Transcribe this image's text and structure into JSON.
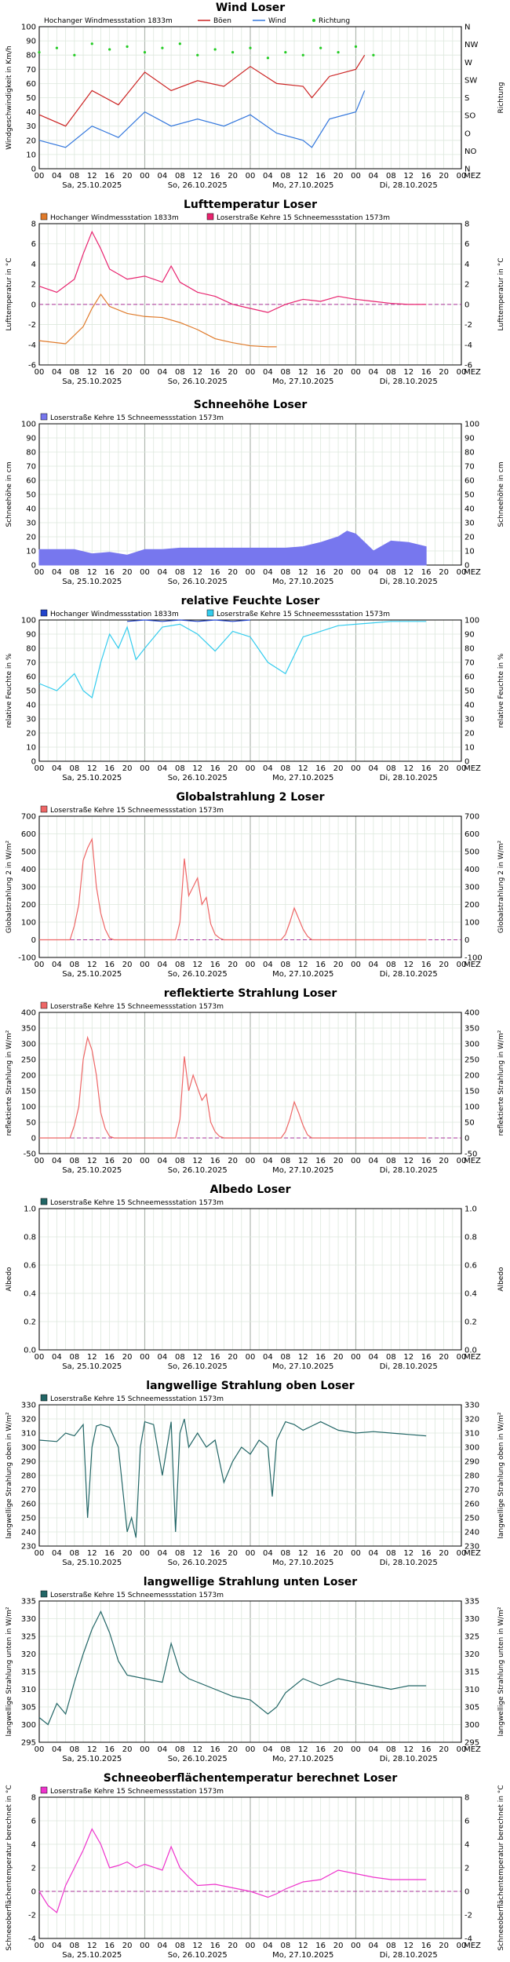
{
  "time_axis": {
    "hours": [
      "00",
      "04",
      "08",
      "12",
      "16",
      "20",
      "00",
      "04",
      "08",
      "12",
      "16",
      "20",
      "00",
      "04",
      "08",
      "12",
      "16",
      "20",
      "00",
      "04",
      "08",
      "12",
      "16",
      "20",
      "00"
    ],
    "tz": "MEZ",
    "dates": [
      "Sa, 25.10.2025",
      "So, 26.10.2025",
      "Mo, 27.10.2025",
      "Di, 28.10.2025"
    ]
  },
  "chart_data": [
    {
      "type": "line",
      "title": "Wind    Loser",
      "ylabel": "Windgeschwindigkeit in Km/h",
      "ylabel_right": "Richtung",
      "ylim": [
        0,
        100
      ],
      "yticks": [
        "0",
        "10",
        "20",
        "30",
        "40",
        "50",
        "60",
        "70",
        "80",
        "90",
        "100"
      ],
      "yticks_right": [
        "N",
        "NO",
        "O",
        "SO",
        "S",
        "SW",
        "W",
        "NW",
        "N"
      ],
      "legend": [
        {
          "label": "Hochanger Windmessstation   1833m",
          "color": "",
          "kind": "station"
        },
        {
          "label": "Böen",
          "color": "#cc2222",
          "kind": "line"
        },
        {
          "label": "Wind",
          "color": "#3377dd",
          "kind": "line"
        },
        {
          "label": "Richtung",
          "color": "#22cc22",
          "kind": "dot"
        }
      ],
      "series": [
        {
          "name": "Böen",
          "color": "#cc2222",
          "x": [
            0,
            6,
            12,
            18,
            24,
            30,
            36,
            42,
            48,
            54,
            60,
            62,
            66,
            72,
            74
          ],
          "y": [
            38,
            30,
            55,
            45,
            68,
            55,
            62,
            58,
            72,
            60,
            58,
            50,
            65,
            70,
            80
          ]
        },
        {
          "name": "Wind",
          "color": "#3377dd",
          "x": [
            0,
            6,
            12,
            18,
            24,
            30,
            36,
            42,
            48,
            54,
            60,
            62,
            66,
            72,
            74
          ],
          "y": [
            20,
            15,
            30,
            22,
            40,
            30,
            35,
            30,
            38,
            25,
            20,
            15,
            35,
            40,
            55
          ]
        },
        {
          "name": "Richtung",
          "color": "#22cc22",
          "kind": "dots",
          "x": [
            0,
            4,
            8,
            12,
            16,
            20,
            24,
            28,
            32,
            36,
            40,
            44,
            48,
            52,
            56,
            60,
            64,
            68,
            72,
            76
          ],
          "y": [
            82,
            85,
            80,
            88,
            84,
            86,
            82,
            85,
            88,
            80,
            84,
            82,
            85,
            78,
            82,
            80,
            85,
            82,
            86,
            80
          ]
        }
      ]
    },
    {
      "type": "line",
      "title": "Lufttemperatur    Loser",
      "ylabel": "Lufttemperatur in °C",
      "ylim": [
        -6,
        8
      ],
      "yticks": [
        "-6",
        "-4",
        "-2",
        "0",
        "2",
        "4",
        "6",
        "8"
      ],
      "zero_line": 0,
      "legend": [
        {
          "label": "Hochanger Windmessstation   1833m",
          "color": "#e07a2a"
        },
        {
          "label": "Loserstraße Kehre 15 Schneemessstation   1573m",
          "color": "#e8226e"
        }
      ],
      "series": [
        {
          "name": "Hochanger Windmessstation   1833m",
          "color": "#e07a2a",
          "x": [
            0,
            6,
            10,
            12,
            14,
            16,
            20,
            24,
            28,
            32,
            36,
            40,
            44,
            48,
            52,
            54
          ],
          "y": [
            -3.6,
            -3.9,
            -2.2,
            -0.4,
            1.0,
            -0.2,
            -0.9,
            -1.2,
            -1.3,
            -1.8,
            -2.5,
            -3.4,
            -3.8,
            -4.1,
            -4.2,
            -4.2
          ]
        },
        {
          "name": "Loserstraße Kehre 15 Schneemessstation   1573m",
          "color": "#e8226e",
          "x": [
            0,
            4,
            8,
            10,
            12,
            14,
            16,
            18,
            20,
            24,
            28,
            30,
            32,
            36,
            40,
            44,
            48,
            52,
            56,
            60,
            64,
            68,
            72,
            76,
            80,
            84,
            88
          ],
          "y": [
            1.8,
            1.2,
            2.5,
            5.0,
            7.2,
            5.5,
            3.5,
            3.0,
            2.5,
            2.8,
            2.2,
            3.8,
            2.2,
            1.2,
            0.8,
            0.0,
            -0.4,
            -0.8,
            0.0,
            0.5,
            0.3,
            0.8,
            0.5,
            0.3,
            0.1,
            0.0,
            0.0
          ]
        }
      ]
    },
    {
      "type": "area",
      "title": "Schneehöhe    Loser",
      "ylabel": "Schneehöhe in cm",
      "ylim": [
        0,
        100
      ],
      "yticks": [
        "0",
        "10",
        "20",
        "30",
        "40",
        "50",
        "60",
        "70",
        "80",
        "90",
        "100"
      ],
      "legend": [
        {
          "label": "Loserstraße Kehre 15 Schneemessstation   1573m",
          "color": "#7777ee"
        }
      ],
      "series": [
        {
          "name": "Loserstraße Kehre 15 Schneemessstation   1573m",
          "color": "#7777ee",
          "x": [
            0,
            8,
            12,
            16,
            20,
            24,
            28,
            32,
            40,
            48,
            56,
            60,
            64,
            68,
            70,
            72,
            74,
            76,
            80,
            84,
            88
          ],
          "y": [
            11,
            11,
            8,
            9,
            7,
            11,
            11,
            12,
            12,
            12,
            12,
            13,
            16,
            20,
            24,
            22,
            16,
            10,
            17,
            16,
            13
          ]
        }
      ]
    },
    {
      "type": "line",
      "title": "relative Feuchte    Loser",
      "ylabel": "relative Feuchte in %",
      "ylim": [
        0,
        100
      ],
      "yticks": [
        "0",
        "10",
        "20",
        "30",
        "40",
        "50",
        "60",
        "70",
        "80",
        "90",
        "100"
      ],
      "legend": [
        {
          "label": "Hochanger Windmessstation   1833m",
          "color": "#2244cc"
        },
        {
          "label": "Loserstraße Kehre 15 Schneemessstation   1573m",
          "color": "#33ccee"
        }
      ],
      "series": [
        {
          "name": "Hochanger Windmessstation   1833m",
          "color": "#2244cc",
          "x": [
            20,
            24,
            28,
            32,
            36,
            40,
            44,
            48
          ],
          "y": [
            99,
            100,
            99,
            100,
            99,
            100,
            99,
            100
          ]
        },
        {
          "name": "Loserstraße Kehre 15 Schneemessstation   1573m",
          "color": "#33ccee",
          "x": [
            0,
            4,
            8,
            10,
            12,
            14,
            16,
            18,
            20,
            22,
            24,
            28,
            32,
            36,
            40,
            44,
            48,
            52,
            56,
            60,
            64,
            68,
            72,
            76,
            80,
            84,
            88
          ],
          "y": [
            55,
            50,
            62,
            50,
            45,
            70,
            90,
            80,
            95,
            72,
            80,
            95,
            97,
            90,
            78,
            92,
            88,
            70,
            62,
            88,
            92,
            96,
            97,
            98,
            99,
            99,
            99
          ]
        }
      ]
    },
    {
      "type": "line",
      "title": "Globalstrahlung 2    Loser",
      "ylabel": "Globalstrahlung 2 in W/m²",
      "ylim": [
        -100,
        700
      ],
      "yticks": [
        "-100",
        "0",
        "100",
        "200",
        "300",
        "400",
        "500",
        "600",
        "700"
      ],
      "zero_line": 0,
      "legend": [
        {
          "label": "Loserstraße Kehre 15 Schneemessstation   1573m",
          "color": "#ee6666"
        }
      ],
      "series": [
        {
          "name": "Loserstraße Kehre 15 Schneemessstation   1573m",
          "color": "#ee6666",
          "x": [
            0,
            7,
            8,
            9,
            10,
            11,
            12,
            13,
            14,
            15,
            16,
            17,
            31,
            32,
            33,
            34,
            35,
            36,
            37,
            38,
            39,
            40,
            41,
            42,
            55,
            56,
            57,
            58,
            59,
            60,
            61,
            62,
            88
          ],
          "y": [
            0,
            0,
            80,
            200,
            450,
            520,
            570,
            300,
            150,
            60,
            10,
            0,
            0,
            100,
            460,
            250,
            300,
            350,
            200,
            240,
            90,
            30,
            10,
            0,
            0,
            30,
            100,
            180,
            120,
            60,
            20,
            0,
            0
          ]
        }
      ]
    },
    {
      "type": "line",
      "title": "reflektierte Strahlung    Loser",
      "ylabel": "reflektierte Strahlung in W/m²",
      "ylim": [
        -50,
        400
      ],
      "yticks": [
        "-50",
        "0",
        "50",
        "100",
        "150",
        "200",
        "250",
        "300",
        "350",
        "400"
      ],
      "zero_line": 0,
      "legend": [
        {
          "label": "Loserstraße Kehre 15 Schneemessstation   1573m",
          "color": "#ee6666"
        }
      ],
      "series": [
        {
          "name": "Loserstraße Kehre 15 Schneemessstation   1573m",
          "color": "#ee6666",
          "x": [
            0,
            7,
            8,
            9,
            10,
            11,
            12,
            13,
            14,
            15,
            16,
            17,
            31,
            32,
            33,
            34,
            35,
            36,
            37,
            38,
            39,
            40,
            41,
            42,
            55,
            56,
            57,
            58,
            59,
            60,
            61,
            62,
            88
          ],
          "y": [
            0,
            0,
            40,
            100,
            250,
            320,
            280,
            200,
            80,
            30,
            5,
            0,
            0,
            60,
            260,
            150,
            200,
            160,
            120,
            140,
            50,
            20,
            5,
            0,
            0,
            20,
            60,
            115,
            80,
            40,
            10,
            0,
            0
          ]
        }
      ]
    },
    {
      "type": "line",
      "title": "Albedo    Loser",
      "ylabel": "Albedo",
      "ylim": [
        0.0,
        1.0
      ],
      "yticks": [
        "0.0",
        "0.2",
        "0.4",
        "0.6",
        "0.8",
        "1.0"
      ],
      "legend": [
        {
          "label": "Loserstraße Kehre 15 Schneemessstation   1573m",
          "color": "#226666"
        }
      ],
      "series": []
    },
    {
      "type": "line",
      "title": "langwellige Strahlung oben    Loser",
      "ylabel": "langwellige Strahlung oben in W/m²",
      "ylim": [
        230,
        330
      ],
      "yticks": [
        "230",
        "240",
        "250",
        "260",
        "270",
        "280",
        "290",
        "300",
        "310",
        "320",
        "330"
      ],
      "legend": [
        {
          "label": "Loserstraße Kehre 15 Schneemessstation   1573m",
          "color": "#226666"
        }
      ],
      "series": [
        {
          "name": "Loserstraße Kehre 15 Schneemessstation   1573m",
          "color": "#226666",
          "x": [
            0,
            4,
            6,
            8,
            10,
            11,
            12,
            13,
            14,
            16,
            18,
            20,
            21,
            22,
            23,
            24,
            26,
            28,
            30,
            31,
            32,
            33,
            34,
            36,
            38,
            40,
            42,
            44,
            46,
            48,
            50,
            52,
            53,
            54,
            56,
            58,
            60,
            62,
            64,
            68,
            72,
            76,
            80,
            84,
            88
          ],
          "y": [
            305,
            304,
            310,
            308,
            316,
            250,
            300,
            315,
            316,
            314,
            300,
            240,
            250,
            236,
            300,
            318,
            316,
            280,
            318,
            240,
            310,
            320,
            300,
            310,
            300,
            305,
            275,
            290,
            300,
            295,
            305,
            300,
            265,
            305,
            318,
            316,
            312,
            315,
            318,
            312,
            310,
            311,
            310,
            309,
            308
          ]
        }
      ]
    },
    {
      "type": "line",
      "title": "langwellige Strahlung unten    Loser",
      "ylabel": "langwellige Strahlung unten in W/m²",
      "ylim": [
        295,
        335
      ],
      "yticks": [
        "295",
        "300",
        "305",
        "310",
        "315",
        "320",
        "325",
        "330",
        "335"
      ],
      "legend": [
        {
          "label": "Loserstraße Kehre 15 Schneemessstation   1573m",
          "color": "#226666"
        }
      ],
      "series": [
        {
          "name": "Loserstraße Kehre 15 Schneemessstation   1573m",
          "color": "#226666",
          "x": [
            0,
            2,
            4,
            6,
            8,
            10,
            12,
            14,
            16,
            18,
            20,
            24,
            28,
            30,
            32,
            34,
            36,
            40,
            44,
            48,
            52,
            54,
            56,
            60,
            64,
            68,
            72,
            76,
            80,
            84,
            88
          ],
          "y": [
            302,
            300,
            306,
            303,
            312,
            320,
            327,
            332,
            326,
            318,
            314,
            313,
            312,
            323,
            315,
            313,
            312,
            310,
            308,
            307,
            303,
            305,
            309,
            313,
            311,
            313,
            312,
            311,
            310,
            311,
            311
          ]
        }
      ]
    },
    {
      "type": "line",
      "title": "Schneeoberflächentemperatur berechnet    Loser",
      "ylabel": "Schneeoberflächentemperatur berechnet in °C",
      "ylim": [
        -4,
        8
      ],
      "yticks": [
        "-4",
        "-2",
        "0",
        "2",
        "4",
        "6",
        "8"
      ],
      "zero_line": 0,
      "legend": [
        {
          "label": "Loserstraße Kehre 15 Schneemessstation   1573m",
          "color": "#ee33cc"
        }
      ],
      "series": [
        {
          "name": "Loserstraße Kehre 15 Schneemessstation   1573m",
          "color": "#ee33cc",
          "x": [
            0,
            2,
            4,
            6,
            8,
            10,
            12,
            14,
            16,
            18,
            20,
            22,
            24,
            28,
            30,
            32,
            34,
            36,
            40,
            44,
            48,
            52,
            54,
            56,
            60,
            64,
            68,
            72,
            76,
            80,
            84,
            88
          ],
          "y": [
            0,
            -1.2,
            -1.8,
            0.5,
            2.0,
            3.5,
            5.3,
            4.0,
            2.0,
            2.2,
            2.5,
            2.0,
            2.3,
            1.8,
            3.8,
            2.0,
            1.2,
            0.5,
            0.6,
            0.3,
            0.0,
            -0.5,
            -0.2,
            0.2,
            0.8,
            1.0,
            1.8,
            1.5,
            1.2,
            1.0,
            1.0,
            1.0
          ]
        }
      ]
    }
  ]
}
